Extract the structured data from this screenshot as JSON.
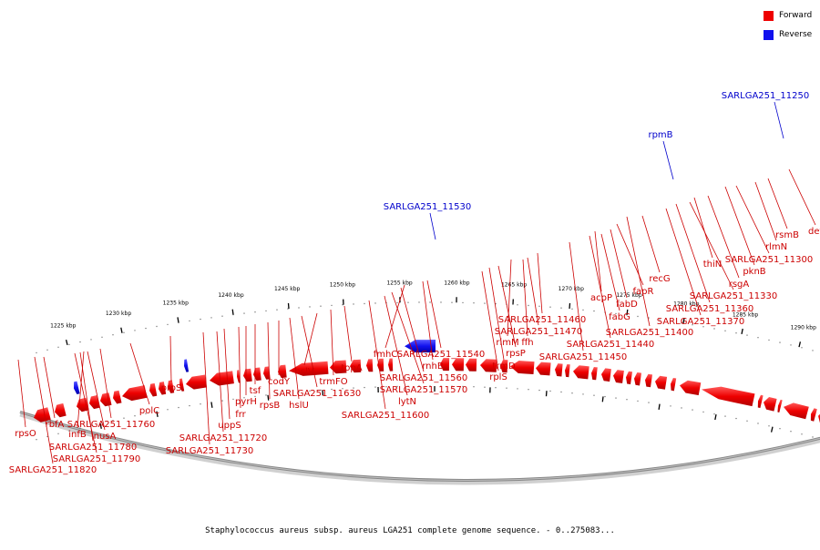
{
  "caption": "Staphylococcus aureus subsp. aureus LGA251 complete genome sequence. - 0..275083...",
  "legend": [
    {
      "label": "Forward",
      "color": "#ee0000"
    },
    {
      "label": "Reverse",
      "color": "#1111ee"
    }
  ],
  "ticks": [
    "1225 kbp",
    "1230 kbp",
    "1235 kbp",
    "1240 kbp",
    "1245 kbp",
    "1250 kbp",
    "1255 kbp",
    "1260 kbp",
    "1265 kbp",
    "1270 kbp",
    "1275 kbp",
    "1280 kbp",
    "1285 kbp",
    "1290 kbp"
  ],
  "reverse_labels": [
    "SARLGA251_11250",
    "rpmB",
    "SARLGA251_11530"
  ],
  "forward_labels": [
    "def",
    "rsmB",
    "rlmN",
    "SARLGA251_11300",
    "pknB",
    "rsgA",
    "thiN",
    "SARLGA251_11330",
    "SARLGA251_11360",
    "SARLGA251_11370",
    "recG",
    "SARLGA251_11400",
    "fapR",
    "fabD",
    "acpP",
    "fabG",
    "SARLGA251_11440",
    "SARLGA251_11450",
    "SARLGA251_11460",
    "SARLGA251_11470",
    "ffh",
    "rimM",
    "rpsP",
    "trmD",
    "rplS",
    "SARLGA251_11540",
    "rnhB",
    "fmhC",
    "SARLGA251_11560",
    "SARLGA251_11570",
    "lytN",
    "SARLGA251_11600",
    "topA",
    "trmFO",
    "hslV",
    "SARLGA251_11630",
    "hslU",
    "codY",
    "rpsB",
    "tsf",
    "pyrH",
    "frr",
    "uppS",
    "SARLGA251_11720",
    "SARLGA251_11730",
    "proS",
    "polC",
    "SARLGA251_11760",
    "nusA",
    "infB",
    "SARLGA251_11780",
    "SARLGA251_11790",
    "rbfA",
    "rpsO",
    "SARLGA251_11820"
  ]
}
